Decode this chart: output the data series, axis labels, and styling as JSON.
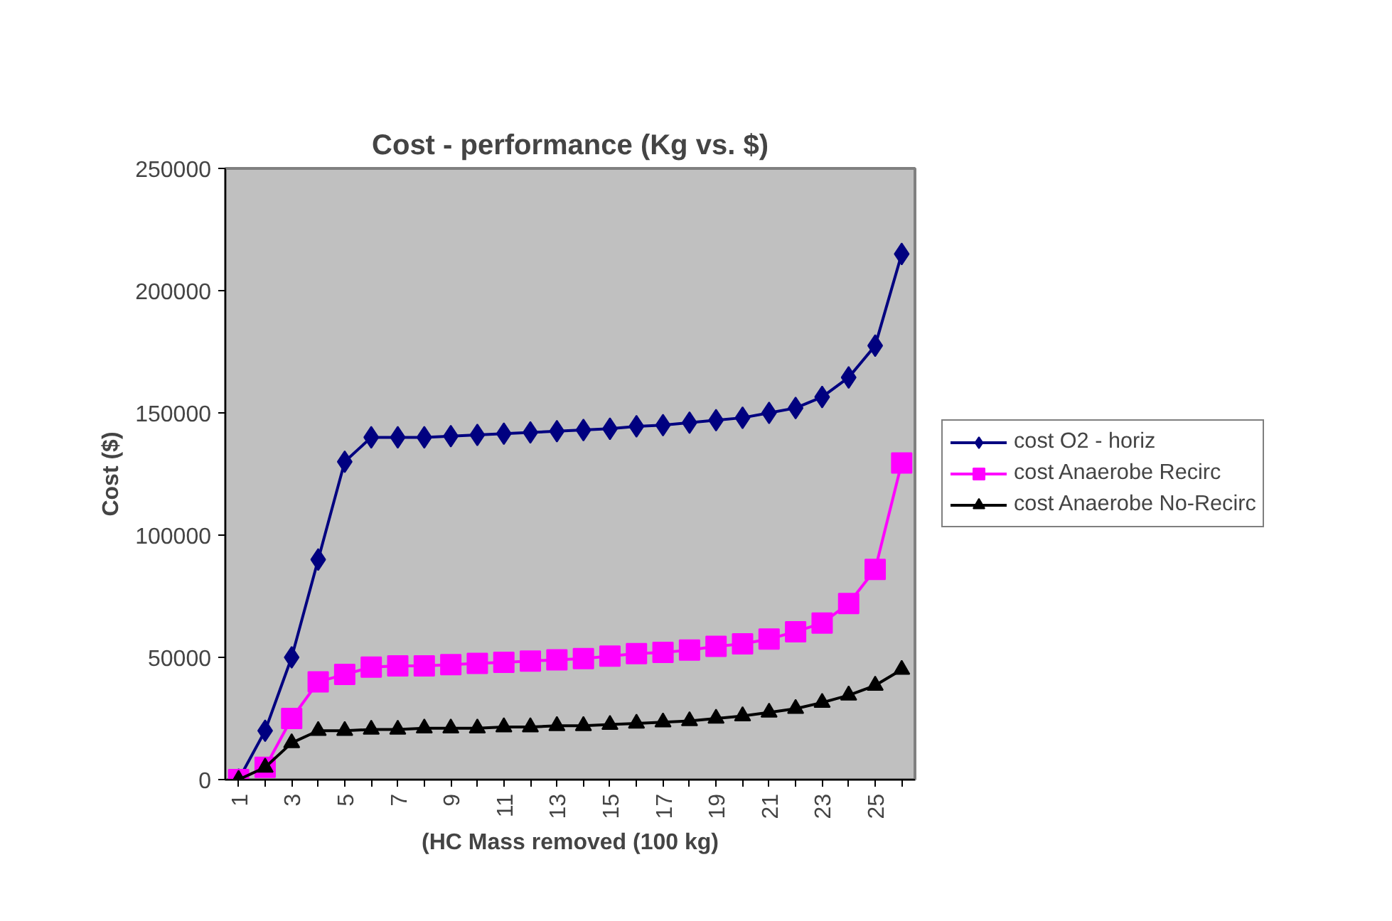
{
  "chart_data": {
    "type": "line",
    "title": "Cost - performance (Kg vs. $)",
    "xlabel": "(HC Mass removed (100 kg)",
    "ylabel": "Cost ($)",
    "categories": [
      "1",
      null,
      "3",
      null,
      "5",
      null,
      "7",
      null,
      "9",
      null,
      "11",
      null,
      "13",
      null,
      "15",
      null,
      "17",
      null,
      "19",
      null,
      "21",
      null,
      "23",
      null,
      "25",
      null
    ],
    "series": [
      {
        "name": "cost O2 - horiz",
        "color": "#000080",
        "marker": "diamond",
        "values": [
          0,
          20000,
          50000,
          90000,
          130000,
          140000,
          140000,
          140000,
          140500,
          141000,
          141500,
          142000,
          142500,
          143000,
          143500,
          144500,
          145000,
          146000,
          147000,
          148000,
          150000,
          152000,
          156500,
          164500,
          177500,
          215000
        ]
      },
      {
        "name": "cost Anaerobe Recirc",
        "color": "#ff00ff",
        "marker": "square",
        "values": [
          0,
          5000,
          25000,
          40000,
          43000,
          46000,
          46500,
          46500,
          47000,
          47500,
          48000,
          48500,
          49000,
          49500,
          50500,
          51500,
          52000,
          53000,
          54500,
          55500,
          57500,
          60500,
          64000,
          72000,
          86000,
          129500
        ]
      },
      {
        "name": "cost Anaerobe No-Recirc",
        "color": "#000000",
        "marker": "triangle",
        "values": [
          0,
          5000,
          15000,
          20000,
          20000,
          20500,
          20500,
          21000,
          21000,
          21000,
          21500,
          21500,
          22000,
          22000,
          22500,
          23000,
          23500,
          24000,
          25000,
          26000,
          27500,
          29000,
          31500,
          34500,
          38500,
          45000
        ]
      }
    ],
    "ylim": [
      0,
      250000
    ],
    "yticks": [
      0,
      50000,
      100000,
      150000,
      200000,
      250000
    ],
    "grid": false,
    "legend": "right"
  }
}
